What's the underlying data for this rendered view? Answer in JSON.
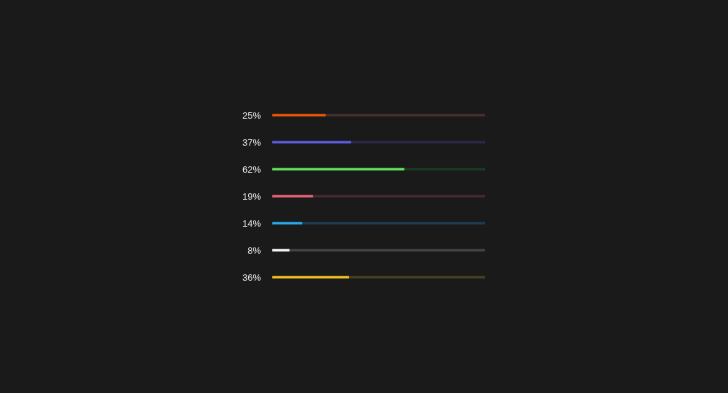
{
  "chart_data": {
    "type": "bar",
    "orientation": "horizontal",
    "stacked": true,
    "categories": [
      null,
      null,
      null,
      null,
      null,
      null,
      null
    ],
    "series": [
      {
        "values": [
          25,
          37,
          62,
          19,
          14,
          8,
          36
        ],
        "colors": [
          "#e8560a",
          "#5c5ce0",
          "#5fe35a",
          "#e8607a",
          "#2aa8e8",
          "#f2f2f2",
          "#f0c020"
        ],
        "value_labels": [
          "25%",
          "37%",
          "62%",
          "19%",
          "14%",
          "8%",
          "36%"
        ]
      },
      {
        "values": [
          75,
          63,
          38,
          81,
          86,
          92,
          64
        ],
        "colors": [
          "#45302e",
          "#2a2a48",
          "#1c3a20",
          "#472a30",
          "#1f3d52",
          "#444444",
          "#48401e"
        ]
      }
    ],
    "xlim": [
      0,
      100
    ],
    "tick_labels": false,
    "legend": false
  }
}
